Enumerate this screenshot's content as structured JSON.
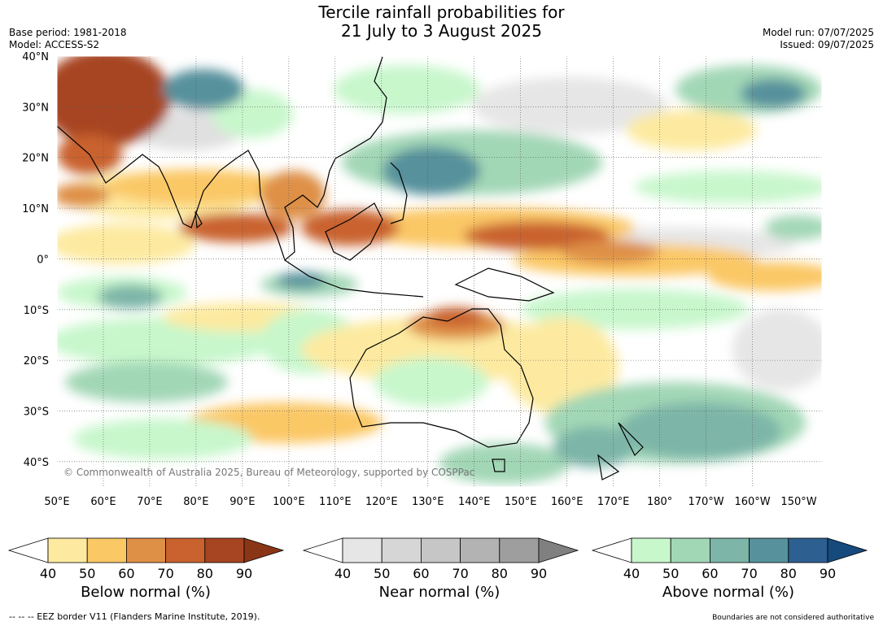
{
  "header": {
    "title_line1": "Tercile rainfall probabilities for",
    "title_line2": "21 July to 3 August 2025",
    "base_period": "Base period: 1981-2018",
    "model": "Model: ACCESS-S2",
    "model_run": "Model run: 07/07/2025",
    "issued": "Issued: 09/07/2025"
  },
  "map": {
    "lat_labels": [
      "40°N",
      "30°N",
      "20°N",
      "10°N",
      "0°",
      "10°S",
      "20°S",
      "30°S",
      "40°S"
    ],
    "lon_labels": [
      "50°E",
      "60°E",
      "70°E",
      "80°E",
      "90°E",
      "100°E",
      "110°E",
      "120°E",
      "130°E",
      "140°E",
      "150°E",
      "160°E",
      "170°E",
      "180°",
      "170°W",
      "160°W",
      "150°W"
    ],
    "copyright": "© Commonwealth of Australia 2025, Bureau of Meteorology, supported by COSPPac",
    "grid": "on"
  },
  "colorbars": [
    {
      "label": "Below normal (%)",
      "ticks": [
        "40",
        "50",
        "60",
        "70",
        "80",
        "90"
      ],
      "colors": [
        "#ffffff",
        "#fdeaa0",
        "#fbc866",
        "#de9046",
        "#c9622f",
        "#a74421",
        "#8b3517"
      ]
    },
    {
      "label": "Near normal (%)",
      "ticks": [
        "40",
        "50",
        "60",
        "70",
        "80",
        "90"
      ],
      "colors": [
        "#ffffff",
        "#e6e6e6",
        "#d6d6d6",
        "#c6c6c6",
        "#b3b3b3",
        "#9e9e9e",
        "#808080"
      ]
    },
    {
      "label": "Above normal (%)",
      "ticks": [
        "40",
        "50",
        "60",
        "70",
        "80",
        "90"
      ],
      "colors": [
        "#ffffff",
        "#c8f7cc",
        "#a2d7b6",
        "#7db5a8",
        "#56919c",
        "#2d5f91",
        "#164a7c"
      ]
    }
  ],
  "footer": {
    "eez_note": "--  --  -- EEZ border V11 (Flanders Marine Institute, 2019).",
    "disclaimer": "Boundaries are not considered authoritative"
  }
}
